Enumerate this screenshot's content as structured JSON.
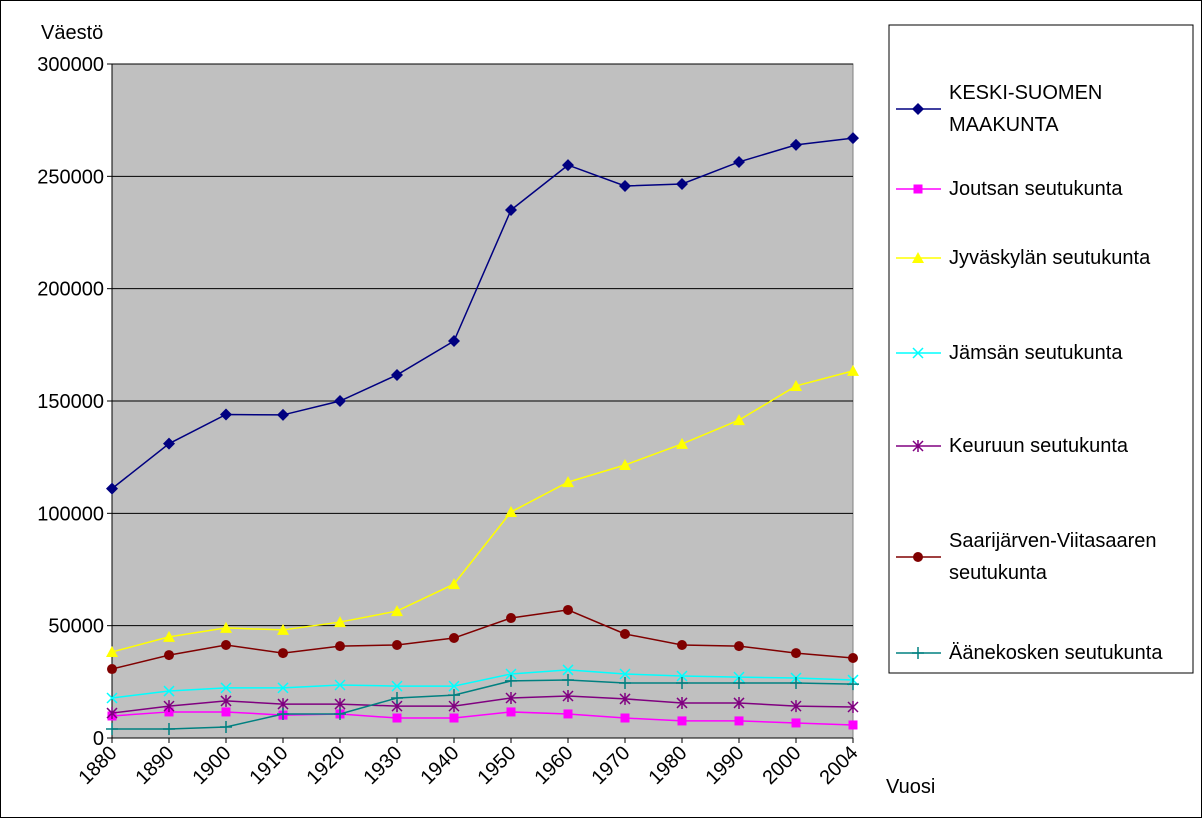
{
  "chart_data": {
    "type": "line",
    "y_label": "Väestö",
    "x_label": "Vuosi",
    "categories": [
      "1880",
      "1890",
      "1900",
      "1910",
      "1920",
      "1930",
      "1940",
      "1950",
      "1960",
      "1970",
      "1980",
      "1990",
      "2000",
      "2004"
    ],
    "ylim": [
      0,
      300000
    ],
    "yticks": [
      0,
      50000,
      100000,
      150000,
      200000,
      250000,
      300000
    ],
    "grid": true,
    "legend": "right",
    "series": [
      {
        "name": "KESKI-SUOMEN MAAKUNTA",
        "color": "#000080",
        "marker": "diamond",
        "values": [
          111000,
          131000,
          144000,
          143800,
          150000,
          161600,
          176700,
          235000,
          255000,
          245700,
          246600,
          256400,
          264000,
          267000
        ]
      },
      {
        "name": "Joutsan seutukunta",
        "color": "#ff00ff",
        "marker": "square",
        "values": [
          9800,
          11600,
          11600,
          10200,
          10700,
          8900,
          8900,
          11600,
          10700,
          8900,
          7600,
          7600,
          6700,
          5800
        ]
      },
      {
        "name": "Jyväskylän seutukunta",
        "color": "#ffff00",
        "marker": "triangle",
        "values": [
          38300,
          45000,
          49000,
          48100,
          51600,
          56500,
          68500,
          100600,
          113900,
          121500,
          130900,
          141500,
          156700,
          163400
        ]
      },
      {
        "name": "Jämsän seutukunta",
        "color": "#00ffff",
        "marker": "x",
        "values": [
          17800,
          20900,
          22300,
          22300,
          23600,
          23100,
          23100,
          28500,
          30300,
          28500,
          27600,
          27100,
          26700,
          25800
        ]
      },
      {
        "name": "Keuruun seutukunta",
        "color": "#800080",
        "marker": "star",
        "values": [
          11100,
          14200,
          16500,
          15100,
          15100,
          14200,
          14200,
          17800,
          18700,
          17400,
          15600,
          15600,
          14200,
          13800
        ]
      },
      {
        "name": "Saarijärven-Viitasaaren seutukunta",
        "color": "#800000",
        "marker": "circle",
        "values": [
          30700,
          36900,
          41400,
          37800,
          40900,
          41400,
          44500,
          53400,
          57000,
          46300,
          41400,
          40900,
          37800,
          35600
        ]
      },
      {
        "name": "Äänekosken seutukunta",
        "color": "#008080",
        "marker": "plus",
        "values": [
          4000,
          4000,
          4900,
          10700,
          10700,
          17800,
          19100,
          25400,
          25800,
          24500,
          24500,
          24500,
          24500,
          24000
        ]
      }
    ]
  }
}
